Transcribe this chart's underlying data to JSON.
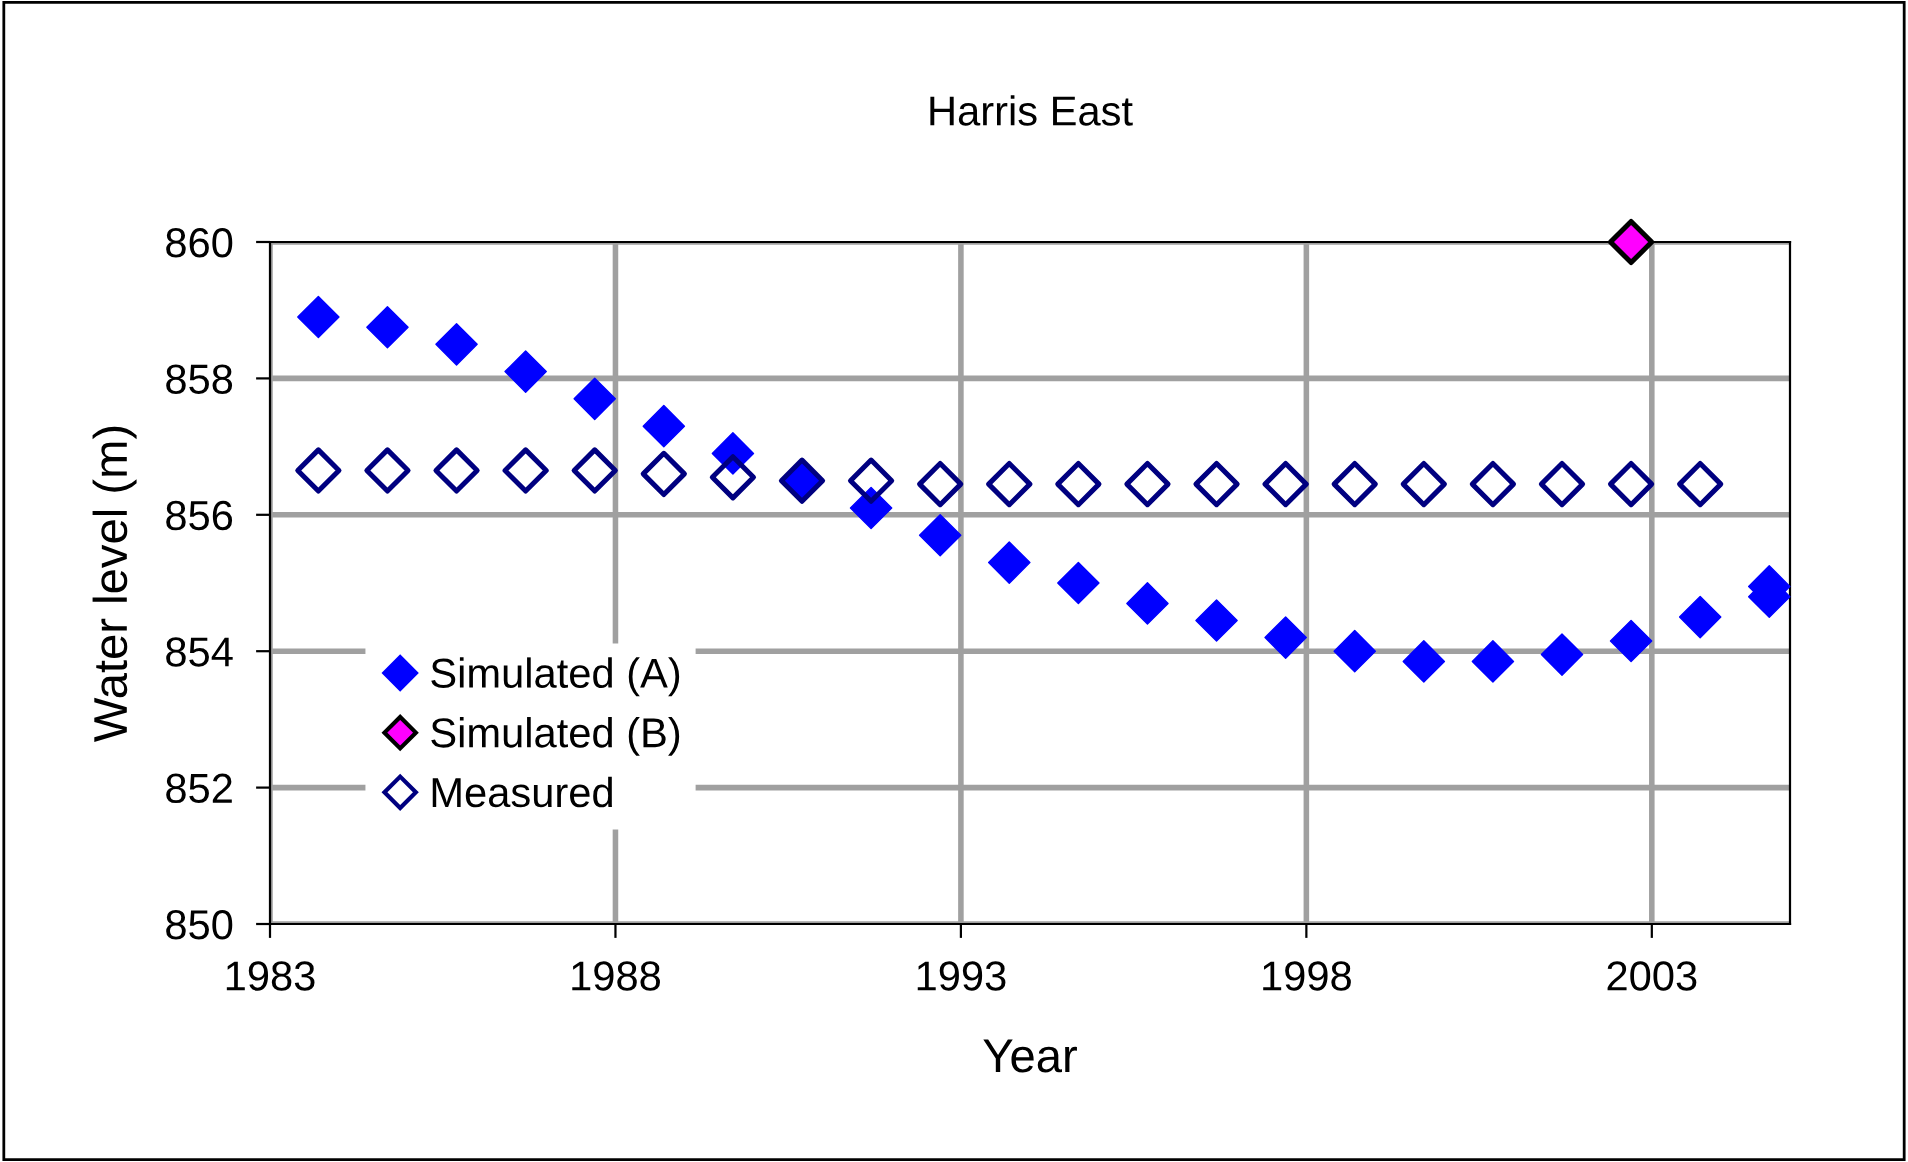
{
  "chart_data": {
    "type": "scatter",
    "title": "Harris East",
    "xlabel": "Year",
    "ylabel": "Water level (m)",
    "xlim": [
      1983,
      2005
    ],
    "xticks": [
      1983,
      1988,
      1993,
      1998,
      2003
    ],
    "ylim": [
      850,
      860
    ],
    "yticks": [
      850,
      852,
      854,
      856,
      858,
      860
    ],
    "grid": true,
    "legend": "left",
    "marker": "diamond",
    "series": [
      {
        "name": "Simulated (A)",
        "color": "#0000ff",
        "x": [
          1983.7,
          1984.7,
          1985.7,
          1986.7,
          1987.7,
          1988.7,
          1989.7,
          1990.7,
          1991.7,
          1992.7,
          1993.7,
          1994.7,
          1995.7,
          1996.7,
          1997.7,
          1998.7,
          1999.7,
          2000.7,
          2001.7,
          2002.7,
          2003.7,
          2004.7,
          2004.7
        ],
        "values": [
          858.9,
          858.75,
          858.5,
          858.1,
          857.7,
          857.3,
          856.9,
          856.5,
          856.1,
          855.7,
          855.3,
          855.0,
          854.7,
          854.45,
          854.2,
          854.0,
          853.85,
          853.85,
          853.95,
          854.15,
          854.5,
          854.8,
          854.95
        ]
      },
      {
        "name": "Simulated (B)",
        "color": "#ff00ff",
        "x": [
          2002.7
        ],
        "values": [
          860
        ]
      },
      {
        "name": "Measured",
        "color": "#000080",
        "x": [
          1983.7,
          1984.7,
          1985.7,
          1986.7,
          1987.7,
          1988.7,
          1989.7,
          1990.7,
          1991.7,
          1992.7,
          1993.7,
          1994.7,
          1995.7,
          1996.7,
          1997.7,
          1998.7,
          1999.7,
          2000.7,
          2001.7,
          2002.7,
          2003.7
        ],
        "values": [
          856.65,
          856.65,
          856.65,
          856.65,
          856.65,
          856.6,
          856.55,
          856.5,
          856.5,
          856.45,
          856.45,
          856.45,
          856.45,
          856.45,
          856.45,
          856.45,
          856.45,
          856.45,
          856.45,
          856.45,
          856.45
        ]
      }
    ]
  }
}
